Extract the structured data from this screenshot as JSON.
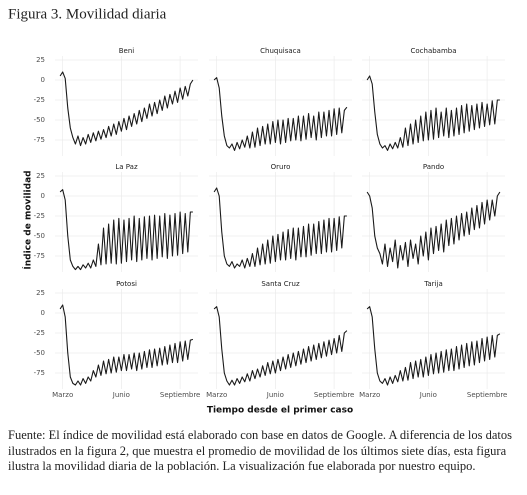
{
  "chart_data": {
    "type": "line",
    "title": "Figura 3. Movilidad diaria",
    "x_label": "Tiempo desde el primer caso",
    "y_label": "Índice de movilidad",
    "color": "#1a1a1a",
    "grid": true,
    "xlim": [
      -12,
      212
    ],
    "xticks": [
      {
        "value": 0,
        "label": "Marzo"
      },
      {
        "value": 92,
        "label": "Junio"
      },
      {
        "value": 184,
        "label": "Septiembre"
      }
    ],
    "ylim": [
      -95,
      30
    ],
    "yticks": [
      25,
      0,
      -25,
      -50,
      -75
    ],
    "x": [
      -4,
      0,
      4,
      8,
      12,
      16,
      20,
      24,
      28,
      32,
      36,
      40,
      44,
      48,
      52,
      56,
      60,
      64,
      68,
      72,
      76,
      80,
      84,
      88,
      92,
      96,
      100,
      104,
      108,
      112,
      116,
      120,
      124,
      128,
      132,
      136,
      140,
      144,
      148,
      152,
      156,
      160,
      164,
      168,
      172,
      176,
      180,
      184,
      188,
      192,
      196,
      200,
      204
    ],
    "panels": [
      {
        "title": "Beni",
        "values": [
          5,
          10,
          2,
          -35,
          -60,
          -72,
          -80,
          -70,
          -82,
          -72,
          -80,
          -68,
          -78,
          -66,
          -76,
          -64,
          -74,
          -62,
          -72,
          -58,
          -70,
          -55,
          -68,
          -52,
          -64,
          -48,
          -62,
          -45,
          -58,
          -42,
          -55,
          -38,
          -52,
          -35,
          -48,
          -30,
          -45,
          -28,
          -42,
          -25,
          -38,
          -20,
          -35,
          -18,
          -30,
          -14,
          -28,
          -10,
          -24,
          -8,
          -20,
          -5,
          0
        ]
      },
      {
        "title": "Chuquisaca",
        "values": [
          0,
          3,
          -10,
          -45,
          -70,
          -82,
          -85,
          -80,
          -88,
          -78,
          -86,
          -75,
          -84,
          -70,
          -85,
          -65,
          -84,
          -60,
          -82,
          -58,
          -80,
          -55,
          -80,
          -52,
          -78,
          -50,
          -80,
          -50,
          -78,
          -48,
          -76,
          -48,
          -75,
          -45,
          -76,
          -45,
          -74,
          -42,
          -72,
          -45,
          -75,
          -40,
          -72,
          -40,
          -70,
          -38,
          -70,
          -36,
          -68,
          -35,
          -66,
          -38,
          -34
        ]
      },
      {
        "title": "Cochabamba",
        "values": [
          0,
          5,
          -5,
          -40,
          -68,
          -80,
          -85,
          -82,
          -88,
          -80,
          -86,
          -78,
          -85,
          -72,
          -84,
          -60,
          -82,
          -55,
          -80,
          -50,
          -78,
          -45,
          -76,
          -40,
          -75,
          -38,
          -74,
          -35,
          -72,
          -40,
          -70,
          -35,
          -72,
          -38,
          -70,
          -35,
          -68,
          -32,
          -66,
          -30,
          -64,
          -32,
          -62,
          -30,
          -60,
          -28,
          -58,
          -30,
          -56,
          -26,
          -55,
          -25,
          -25
        ]
      },
      {
        "title": "La Paz",
        "values": [
          5,
          8,
          -5,
          -50,
          -80,
          -88,
          -92,
          -88,
          -92,
          -86,
          -90,
          -84,
          -90,
          -80,
          -88,
          -60,
          -86,
          -40,
          -85,
          -35,
          -84,
          -30,
          -85,
          -28,
          -84,
          -30,
          -82,
          -28,
          -80,
          -25,
          -82,
          -28,
          -80,
          -26,
          -78,
          -25,
          -80,
          -24,
          -78,
          -25,
          -76,
          -22,
          -78,
          -24,
          -75,
          -22,
          -74,
          -20,
          -72,
          -22,
          -70,
          -20,
          -20
        ]
      },
      {
        "title": "Oruro",
        "values": [
          5,
          10,
          0,
          -45,
          -75,
          -85,
          -88,
          -82,
          -90,
          -85,
          -88,
          -80,
          -90,
          -78,
          -88,
          -72,
          -88,
          -65,
          -86,
          -60,
          -85,
          -55,
          -84,
          -50,
          -82,
          -48,
          -80,
          -45,
          -80,
          -42,
          -78,
          -40,
          -80,
          -40,
          -76,
          -38,
          -76,
          -35,
          -74,
          -35,
          -72,
          -32,
          -72,
          -30,
          -70,
          -28,
          -70,
          -28,
          -68,
          -26,
          -65,
          -25,
          -25
        ]
      },
      {
        "title": "Pando",
        "values": [
          5,
          0,
          -15,
          -50,
          -65,
          -72,
          -85,
          -60,
          -88,
          -65,
          -82,
          -55,
          -90,
          -62,
          -80,
          -58,
          -88,
          -55,
          -78,
          -60,
          -85,
          -50,
          -75,
          -45,
          -80,
          -40,
          -72,
          -38,
          -68,
          -35,
          -70,
          -30,
          -62,
          -28,
          -60,
          -25,
          -55,
          -22,
          -50,
          -20,
          -48,
          -15,
          -42,
          -12,
          -40,
          -8,
          -35,
          -5,
          -30,
          -5,
          -25,
          0,
          5
        ]
      },
      {
        "title": "Potosi",
        "values": [
          5,
          10,
          -5,
          -50,
          -80,
          -88,
          -90,
          -85,
          -90,
          -82,
          -88,
          -80,
          -85,
          -72,
          -80,
          -65,
          -78,
          -60,
          -76,
          -58,
          -75,
          -55,
          -74,
          -55,
          -72,
          -52,
          -72,
          -52,
          -70,
          -50,
          -72,
          -50,
          -70,
          -48,
          -68,
          -46,
          -68,
          -45,
          -66,
          -44,
          -65,
          -42,
          -64,
          -40,
          -62,
          -38,
          -62,
          -36,
          -60,
          -35,
          -58,
          -34,
          -33
        ]
      },
      {
        "title": "Santa Cruz",
        "values": [
          5,
          8,
          -5,
          -45,
          -75,
          -85,
          -90,
          -84,
          -90,
          -82,
          -88,
          -80,
          -86,
          -76,
          -85,
          -72,
          -82,
          -70,
          -80,
          -66,
          -78,
          -62,
          -76,
          -60,
          -75,
          -58,
          -72,
          -55,
          -70,
          -52,
          -68,
          -50,
          -66,
          -48,
          -64,
          -45,
          -62,
          -42,
          -60,
          -40,
          -58,
          -38,
          -56,
          -36,
          -54,
          -34,
          -52,
          -32,
          -50,
          -28,
          -48,
          -25,
          -22
        ]
      },
      {
        "title": "Tarija",
        "values": [
          5,
          8,
          -5,
          -45,
          -75,
          -85,
          -88,
          -82,
          -90,
          -80,
          -88,
          -78,
          -86,
          -72,
          -85,
          -68,
          -84,
          -62,
          -82,
          -60,
          -80,
          -58,
          -80,
          -55,
          -78,
          -52,
          -76,
          -50,
          -75,
          -48,
          -74,
          -46,
          -72,
          -45,
          -72,
          -42,
          -70,
          -40,
          -68,
          -38,
          -66,
          -36,
          -65,
          -35,
          -62,
          -32,
          -60,
          -30,
          -58,
          -28,
          -55,
          -28,
          -26
        ]
      }
    ]
  },
  "note": "Fuente: El índice de movilidad está elaborado con base en datos de Google. A diferencia de los datos ilustrados en la figura 2, que muestra el promedio de movilidad de los últimos siete días, esta figura ilustra la movilidad diaria de la población. La visualización fue elaborada por nuestro equipo."
}
